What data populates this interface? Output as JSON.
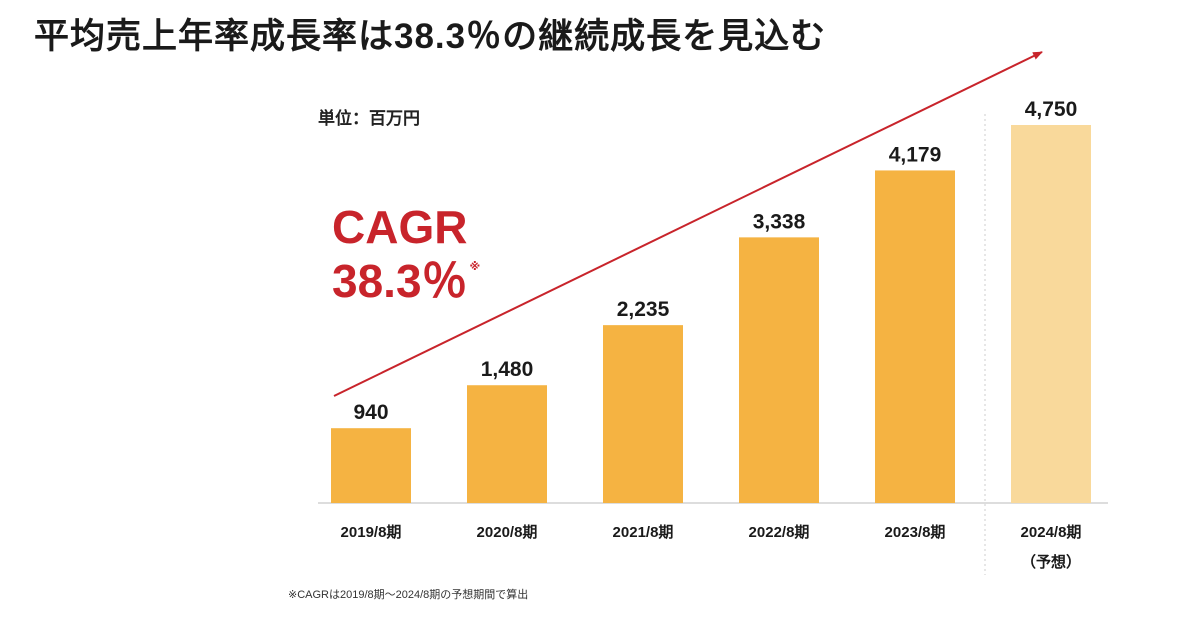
{
  "title": "平均売上年率成長率は38.3％の継続成長を見込む",
  "unit_label": "単位：百万円",
  "cagr": {
    "label": "CAGR",
    "value": "38.3％",
    "note_mark": "※"
  },
  "footnote": "※CAGRは2019/8期〜2024/8期の予想期間で算出",
  "colors": {
    "bar": "#f5b342",
    "bar_forecast": "#f9d99b",
    "accent": "#c8242b",
    "separator": "#cccccc"
  },
  "chart_data": {
    "type": "bar",
    "categories": [
      "2019/8期",
      "2020/8期",
      "2021/8期",
      "2022/8期",
      "2023/8期",
      "2024/8期"
    ],
    "forecast_note": "（予想）",
    "values": [
      940,
      1480,
      2235,
      3338,
      4179,
      4750
    ],
    "value_labels": [
      "940",
      "1,480",
      "2,235",
      "3,338",
      "4,179",
      "4,750"
    ],
    "forecast": [
      false,
      false,
      false,
      false,
      false,
      true
    ],
    "ylabel": "百万円",
    "ylim": [
      0,
      4750
    ],
    "trend_arrow": true
  }
}
